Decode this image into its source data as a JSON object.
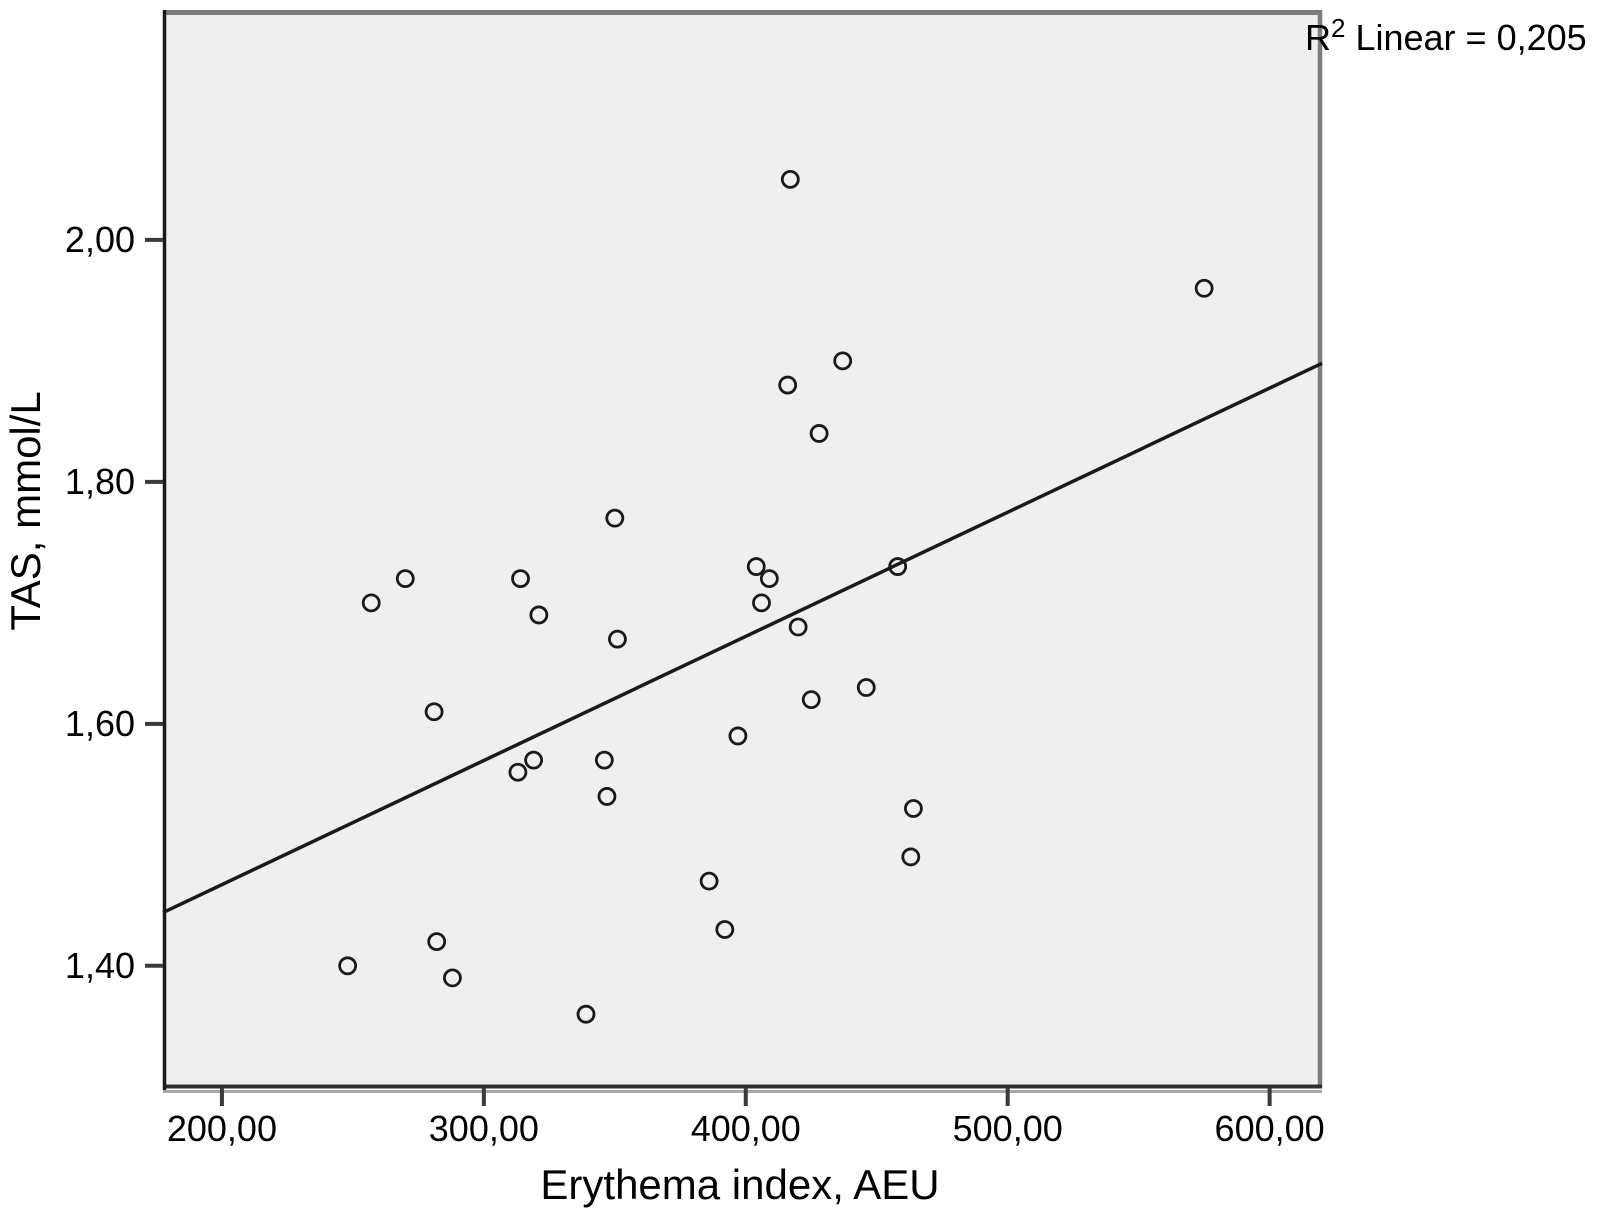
{
  "figure": {
    "r2_label": {
      "base": "R",
      "sup": "2",
      "rest": " Linear = 0,205"
    },
    "x_axis": {
      "title": "Erythema index, AEU",
      "ticks": [
        {
          "value": 200,
          "label": "200,00"
        },
        {
          "value": 300,
          "label": "300,00"
        },
        {
          "value": 400,
          "label": "400,00"
        },
        {
          "value": 500,
          "label": "500,00"
        },
        {
          "value": 600,
          "label": "600,00"
        }
      ]
    },
    "y_axis": {
      "title": "TAS, mmol/L",
      "ticks": [
        {
          "value": 2.0,
          "label": "2,00"
        },
        {
          "value": 1.8,
          "label": "1,80"
        },
        {
          "value": 1.6,
          "label": "1,60"
        },
        {
          "value": 1.4,
          "label": "1,40"
        }
      ]
    }
  },
  "chart_data": {
    "type": "scatter",
    "title": "",
    "xlabel": "Erythema index, AEU",
    "ylabel": "TAS, mmol/L",
    "xlim": [
      177.5,
      620
    ],
    "ylim": [
      1.299,
      2.19
    ],
    "x_ticks": [
      200,
      300,
      400,
      500,
      600
    ],
    "y_ticks": [
      1.4,
      1.6,
      1.8,
      2.0
    ],
    "decimal_separator": ",",
    "grid": false,
    "legend": "none",
    "annotation": "R2 Linear = 0,205",
    "marker_style": "open-circle",
    "points": [
      [
        417,
        2.05
      ],
      [
        575,
        1.96
      ],
      [
        437,
        1.9
      ],
      [
        416,
        1.88
      ],
      [
        428,
        1.84
      ],
      [
        350,
        1.77
      ],
      [
        404,
        1.73
      ],
      [
        409,
        1.72
      ],
      [
        406,
        1.7
      ],
      [
        458,
        1.73
      ],
      [
        420,
        1.68
      ],
      [
        270,
        1.72
      ],
      [
        314,
        1.72
      ],
      [
        257,
        1.7
      ],
      [
        321,
        1.69
      ],
      [
        351,
        1.67
      ],
      [
        281,
        1.61
      ],
      [
        425,
        1.62
      ],
      [
        446,
        1.63
      ],
      [
        397,
        1.59
      ],
      [
        313,
        1.56
      ],
      [
        319,
        1.57
      ],
      [
        346,
        1.57
      ],
      [
        347,
        1.54
      ],
      [
        464,
        1.53
      ],
      [
        463,
        1.49
      ],
      [
        386,
        1.47
      ],
      [
        392,
        1.43
      ],
      [
        282,
        1.42
      ],
      [
        288,
        1.39
      ],
      [
        248,
        1.4
      ],
      [
        339,
        1.36
      ]
    ],
    "regression_line": {
      "x1": 177.5,
      "y1": 1.444,
      "x2": 620,
      "y2": 1.898,
      "r2": 0.205
    },
    "colors": {
      "plot_bg": "#efefef",
      "marker": "#1a1a1a",
      "line": "#1a1a1a",
      "frame_dark": "#1a1a1a",
      "frame_gray": "#7d7d7d",
      "tick": "#3a3a3a"
    }
  }
}
